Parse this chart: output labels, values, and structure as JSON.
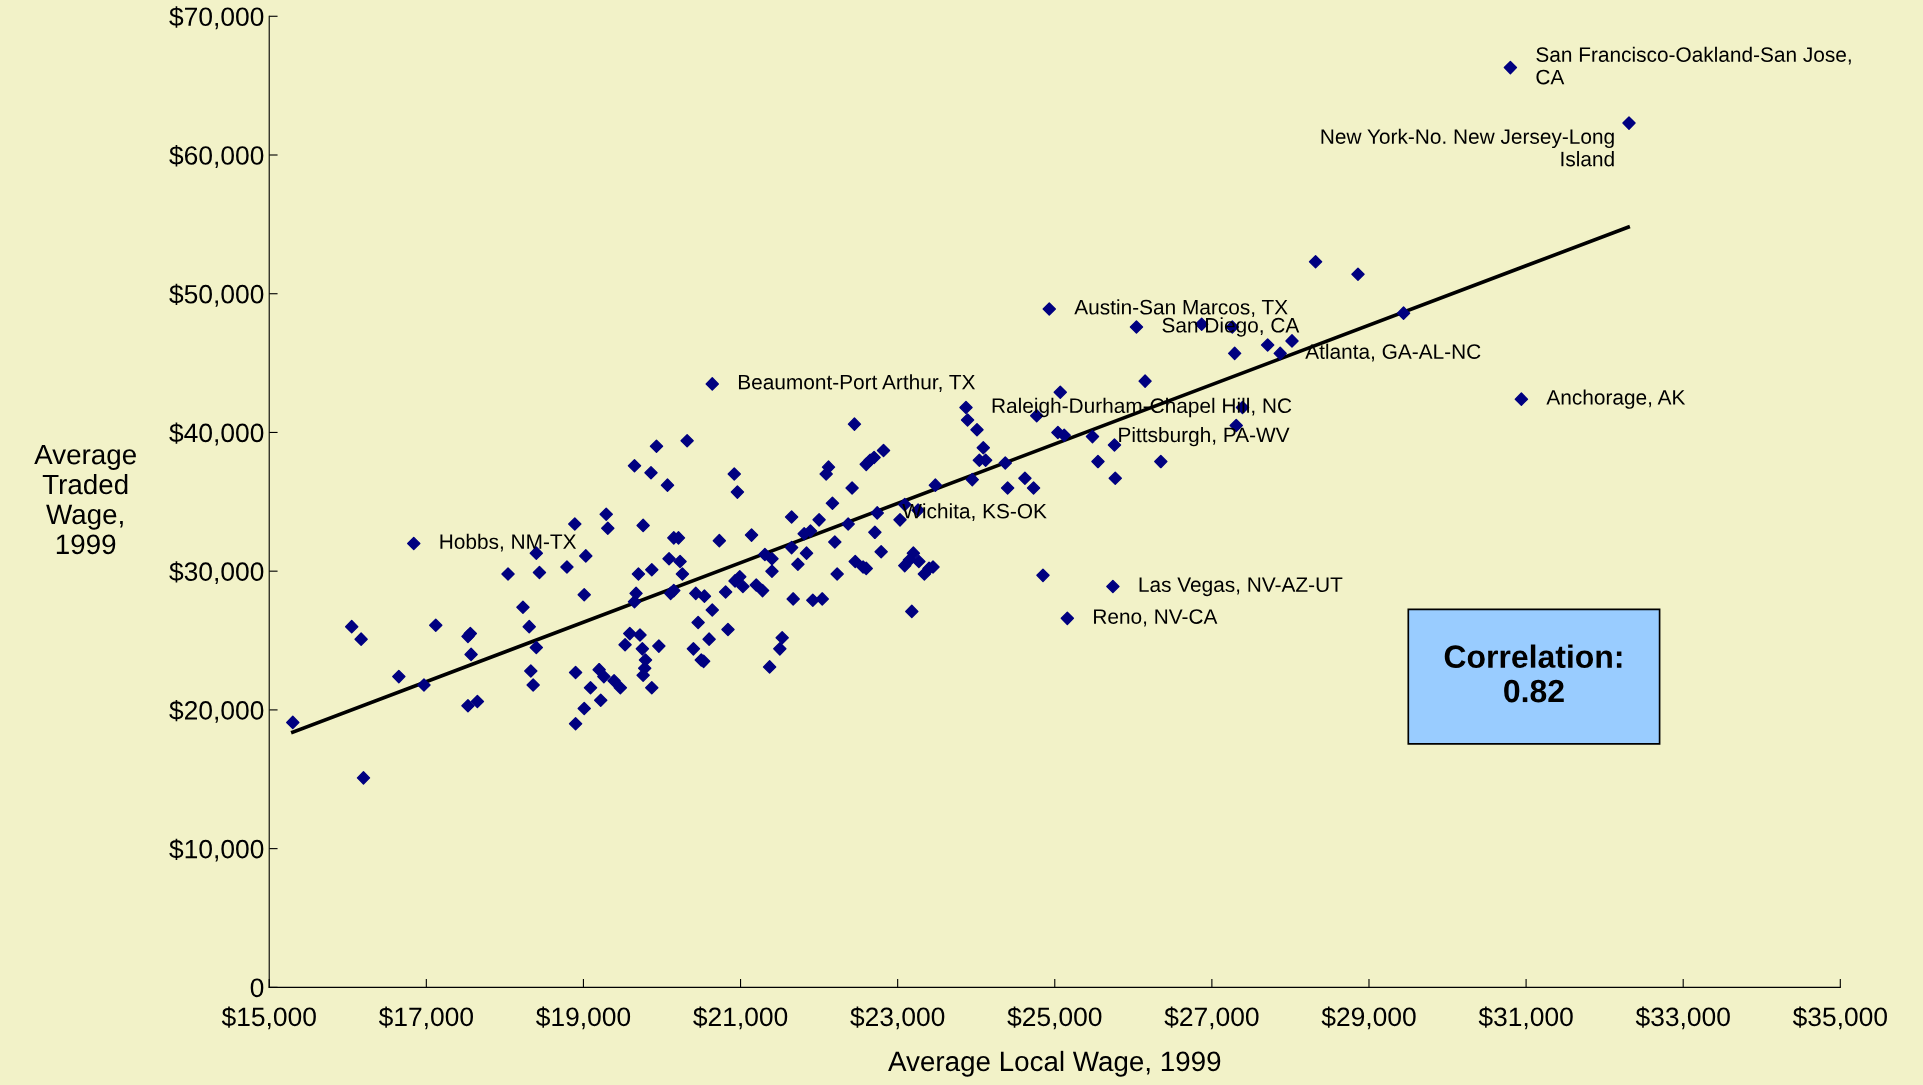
{
  "chart_data": {
    "type": "scatter",
    "xlabel": "Average Local Wage, 1999",
    "ylabel": "Average\nTraded\nWage,\n1999",
    "xlim": [
      15000,
      35000
    ],
    "ylim": [
      0,
      70000
    ],
    "xticks": [
      {
        "value": 15000,
        "label": "$15,000"
      },
      {
        "value": 17000,
        "label": "$17,000"
      },
      {
        "value": 19000,
        "label": "$19,000"
      },
      {
        "value": 21000,
        "label": "$21,000"
      },
      {
        "value": 23000,
        "label": "$23,000"
      },
      {
        "value": 25000,
        "label": "$25,000"
      },
      {
        "value": 27000,
        "label": "$27,000"
      },
      {
        "value": 29000,
        "label": "$29,000"
      },
      {
        "value": 31000,
        "label": "$31,000"
      },
      {
        "value": 33000,
        "label": "$33,000"
      },
      {
        "value": 35000,
        "label": "$35,000"
      }
    ],
    "yticks": [
      {
        "value": 0,
        "label": "0"
      },
      {
        "value": 10000,
        "label": "$10,000"
      },
      {
        "value": 20000,
        "label": "$20,000"
      },
      {
        "value": 30000,
        "label": "$30,000"
      },
      {
        "value": 40000,
        "label": "$40,000"
      },
      {
        "value": 50000,
        "label": "$50,000"
      },
      {
        "value": 60000,
        "label": "$60,000"
      },
      {
        "value": 70000,
        "label": "$70,000"
      }
    ],
    "grid": false,
    "legend": false,
    "marker": "diamond",
    "series": [
      {
        "color": "#000080",
        "x": [
          15300,
          16050,
          16170,
          16200,
          16650,
          16840,
          16970,
          17120,
          17530,
          17560,
          17570,
          17530,
          17650,
          18040,
          18230,
          18310,
          18330,
          18360,
          18400,
          18440,
          18400,
          18790,
          18890,
          18900,
          18900,
          19010,
          19030,
          19010,
          19090,
          19200,
          19220,
          19260,
          19290,
          19310,
          19390,
          19470,
          19530,
          19590,
          19650,
          19670,
          19650,
          19700,
          19720,
          19760,
          19750,
          19780,
          19760,
          19790,
          19860,
          19870,
          19870,
          19930,
          19960,
          20070,
          20090,
          20110,
          20150,
          20150,
          20210,
          20230,
          20260,
          20320,
          20400,
          20430,
          20460,
          20500,
          20530,
          20540,
          20600,
          20640,
          20640,
          20730,
          20810,
          20840,
          20920,
          20960,
          20930,
          20990,
          21030,
          21140,
          21200,
          21280,
          21310,
          21370,
          21400,
          21400,
          21500,
          21530,
          21650,
          21650,
          21670,
          21730,
          21810,
          21840,
          21890,
          21920,
          22000,
          22040,
          22090,
          22120,
          22170,
          22200,
          22230,
          22370,
          22420,
          22450,
          22460,
          22560,
          22600,
          22600,
          22650,
          22700,
          22710,
          22740,
          22790,
          22820,
          23030,
          23090,
          23090,
          23150,
          23180,
          23200,
          23260,
          23270,
          23340,
          23400,
          23450,
          23480,
          23870,
          23890,
          23950,
          24010,
          24040,
          24090,
          24120,
          24370,
          24400,
          24620,
          24730,
          24770,
          24850,
          24930,
          25040,
          25070,
          25120,
          25160,
          25480,
          25550,
          25740,
          25770,
          25760,
          26040,
          26150,
          26350,
          26870,
          27260,
          27290,
          27310,
          27390,
          27710,
          27870,
          28020,
          28320,
          28860,
          29440,
          30800,
          30940,
          32310
        ],
        "values": [
          19100,
          26000,
          25100,
          15100,
          22400,
          32000,
          21800,
          26100,
          25300,
          25500,
          24000,
          20300,
          20600,
          29800,
          27400,
          26000,
          22800,
          21800,
          31300,
          29900,
          24500,
          30300,
          33400,
          22700,
          19000,
          20100,
          31100,
          28300,
          21600,
          22900,
          20700,
          22400,
          34100,
          33100,
          22100,
          21600,
          24700,
          25500,
          37600,
          28400,
          27800,
          29800,
          25400,
          33300,
          24400,
          23000,
          22500,
          23600,
          37100,
          30100,
          21600,
          39000,
          24600,
          36200,
          30900,
          28400,
          32400,
          28600,
          32400,
          30700,
          29800,
          39400,
          24400,
          28400,
          26300,
          23600,
          23500,
          28200,
          25100,
          43500,
          27200,
          32200,
          28500,
          25800,
          37000,
          35700,
          29300,
          29600,
          28900,
          32600,
          29000,
          28600,
          31200,
          23100,
          30000,
          30900,
          24400,
          25200,
          33900,
          31700,
          28000,
          30500,
          32700,
          31300,
          32900,
          27900,
          33700,
          28000,
          37000,
          37500,
          34900,
          32100,
          29800,
          33400,
          36000,
          40600,
          30700,
          30300,
          30200,
          37700,
          38000,
          38200,
          32800,
          34200,
          31400,
          38700,
          33700,
          34800,
          30400,
          30800,
          27100,
          31300,
          34400,
          30700,
          29800,
          30200,
          30300,
          36200,
          41800,
          40900,
          36600,
          40200,
          38000,
          38900,
          38000,
          37800,
          36000,
          36700,
          36000,
          41200,
          29700,
          48900,
          40000,
          42900,
          39800,
          26600,
          39700,
          37900,
          28900,
          36700,
          39100,
          47600,
          43700,
          37900,
          47800,
          47600,
          45700,
          40500,
          41800,
          46300,
          45700,
          46600,
          52300,
          51400,
          48600,
          66300,
          42400,
          62300
        ]
      },
      {
        "type": "line",
        "marker": "none",
        "color": "#000000",
        "x": [
          15300,
          32300
        ],
        "values": [
          18400,
          54800
        ]
      }
    ],
    "annotations": [
      {
        "text": "Hobbs, NM-TX",
        "x": 16840,
        "y": 32000
      },
      {
        "text": "Beaumont-Port Arthur, TX",
        "x": 20640,
        "y": 43500
      },
      {
        "text": "Austin-San Marcos, TX",
        "x": 24930,
        "y": 48900
      },
      {
        "text": "San Diego, CA",
        "x": 26040,
        "y": 47600
      },
      {
        "text": "Atlanta, GA-AL-NC",
        "x": 27870,
        "y": 45700
      },
      {
        "text": "Raleigh-Durham-Chapel Hill, NC",
        "x": 23870,
        "y": 41800
      },
      {
        "text": "Pittsburgh, PA-WV",
        "x": 25480,
        "y": 39700
      },
      {
        "text": "Wichita, KS-OK",
        "x": 22740,
        "y": 34200
      },
      {
        "text": "Las Vegas, NV-AZ-UT",
        "x": 25740,
        "y": 28900
      },
      {
        "text": "Reno, NV-CA",
        "x": 25160,
        "y": 26600
      },
      {
        "text": "Anchorage, AK",
        "x": 30940,
        "y": 42400
      },
      {
        "text": "San Francisco-Oakland-San Jose,\nCA",
        "x": 30800,
        "y": 66300
      },
      {
        "text": "New York-No. New Jersey-Long\nIsland",
        "x": 32310,
        "y": 62300
      },
      "Correlation:\n0.82"
    ]
  }
}
